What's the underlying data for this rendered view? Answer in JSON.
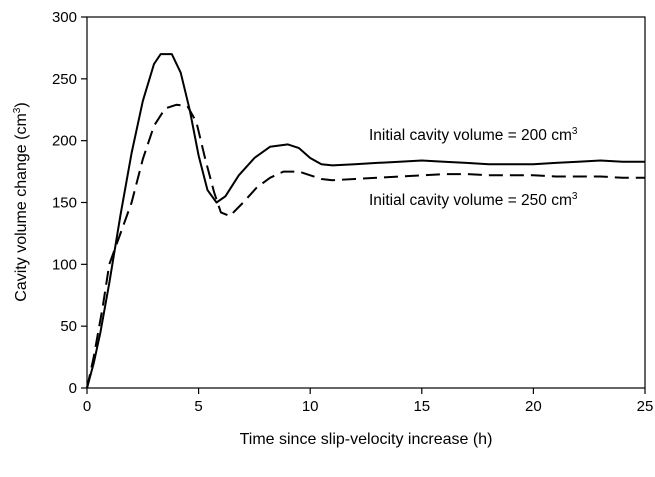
{
  "chart_data": {
    "type": "line",
    "title": "",
    "xlabel": "Time since slip-velocity increase (h)",
    "ylabel_main": "Cavity volume change (cm",
    "ylabel_sup": "3",
    "ylabel_close": ")",
    "xlim": [
      0,
      25
    ],
    "ylim": [
      0,
      300
    ],
    "xticks": [
      "0",
      "5",
      "10",
      "15",
      "20",
      "25"
    ],
    "yticks": [
      "0",
      "50",
      "100",
      "150",
      "200",
      "250",
      "300"
    ],
    "grid": false,
    "series": [
      {
        "label_main": "Initial cavity volume = 200 cm",
        "label_sup": "3",
        "style": "solid",
        "color": "#000000",
        "points": [
          [
            0,
            0
          ],
          [
            0.3,
            20
          ],
          [
            0.6,
            45
          ],
          [
            1.0,
            85
          ],
          [
            1.5,
            140
          ],
          [
            2.0,
            190
          ],
          [
            2.5,
            232
          ],
          [
            3.0,
            262
          ],
          [
            3.3,
            270
          ],
          [
            3.8,
            270
          ],
          [
            4.2,
            255
          ],
          [
            4.6,
            225
          ],
          [
            5.0,
            188
          ],
          [
            5.4,
            160
          ],
          [
            5.8,
            150
          ],
          [
            6.2,
            155
          ],
          [
            6.8,
            172
          ],
          [
            7.5,
            186
          ],
          [
            8.2,
            195
          ],
          [
            9.0,
            197
          ],
          [
            9.5,
            194
          ],
          [
            10.0,
            186
          ],
          [
            10.5,
            181
          ],
          [
            11.0,
            180
          ],
          [
            12.0,
            181
          ],
          [
            13.0,
            182
          ],
          [
            14.0,
            183
          ],
          [
            15.0,
            184
          ],
          [
            16.0,
            183
          ],
          [
            17.0,
            182
          ],
          [
            18.0,
            181
          ],
          [
            19.0,
            181
          ],
          [
            20.0,
            181
          ],
          [
            21.0,
            182
          ],
          [
            22.0,
            183
          ],
          [
            23.0,
            184
          ],
          [
            24.0,
            183
          ],
          [
            25.0,
            183
          ]
        ]
      },
      {
        "label_main": "Initial cavity volume = 250 cm",
        "label_sup": "3",
        "style": "dashed",
        "color": "#000000",
        "points": [
          [
            0,
            0
          ],
          [
            0.3,
            25
          ],
          [
            0.7,
            65
          ],
          [
            1.0,
            100
          ],
          [
            1.5,
            125
          ],
          [
            2.0,
            150
          ],
          [
            2.5,
            185
          ],
          [
            3.0,
            212
          ],
          [
            3.5,
            226
          ],
          [
            4.0,
            229
          ],
          [
            4.5,
            228
          ],
          [
            4.9,
            215
          ],
          [
            5.3,
            185
          ],
          [
            5.7,
            158
          ],
          [
            6.0,
            142
          ],
          [
            6.4,
            139
          ],
          [
            7.0,
            150
          ],
          [
            7.6,
            162
          ],
          [
            8.2,
            170
          ],
          [
            8.8,
            175
          ],
          [
            9.5,
            175
          ],
          [
            10.0,
            172
          ],
          [
            10.5,
            169
          ],
          [
            11.0,
            168
          ],
          [
            12.0,
            169
          ],
          [
            13.0,
            170
          ],
          [
            14.0,
            171
          ],
          [
            15.0,
            172
          ],
          [
            16.0,
            173
          ],
          [
            17.0,
            173
          ],
          [
            18.0,
            172
          ],
          [
            19.0,
            172
          ],
          [
            20.0,
            172
          ],
          [
            21.0,
            171
          ],
          [
            22.0,
            171
          ],
          [
            23.0,
            171
          ],
          [
            24.0,
            170
          ],
          [
            25.0,
            170
          ]
        ]
      }
    ]
  }
}
